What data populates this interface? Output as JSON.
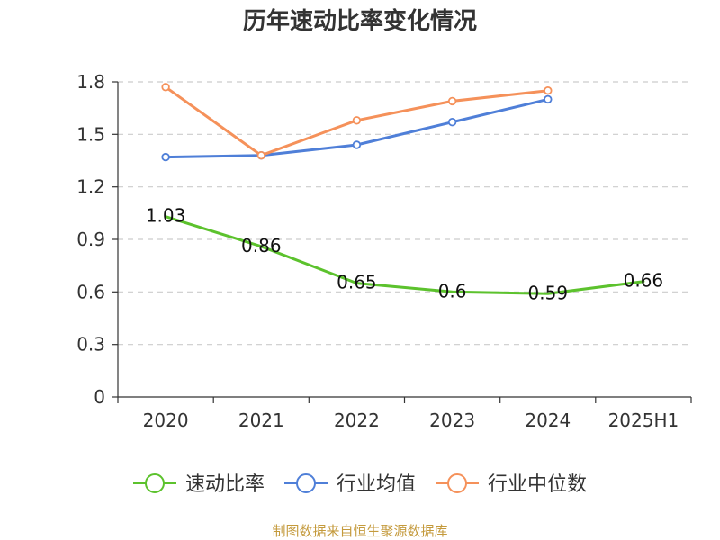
{
  "chart_data": {
    "type": "line",
    "title": "历年速动比率变化情况",
    "categories": [
      "2020",
      "2021",
      "2022",
      "2023",
      "2024",
      "2025H1"
    ],
    "y_ticks": [
      "0",
      "0.3",
      "0.6",
      "0.9",
      "1.2",
      "1.5",
      "1.8"
    ],
    "ylim": [
      0,
      1.8
    ],
    "grid": "horizontal dashed",
    "legend_position": "bottom",
    "series": [
      {
        "name": "速动比率",
        "color": "#5cc22d",
        "values": [
          1.03,
          0.86,
          0.65,
          0.6,
          0.59,
          0.66
        ],
        "labels": [
          "1.03",
          "0.86",
          "0.65",
          "0.6",
          "0.59",
          "0.66"
        ],
        "show_markers": false
      },
      {
        "name": "行业均值",
        "color": "#4f7fd8",
        "values": [
          1.37,
          1.38,
          1.44,
          1.57,
          1.7,
          null
        ],
        "show_markers": true
      },
      {
        "name": "行业中位数",
        "color": "#f5915a",
        "values": [
          1.77,
          1.38,
          1.58,
          1.69,
          1.75,
          null
        ],
        "show_markers": true
      }
    ]
  },
  "source": {
    "text": "制图数据来自恒生聚源数据库",
    "color": "#c49a3c"
  }
}
